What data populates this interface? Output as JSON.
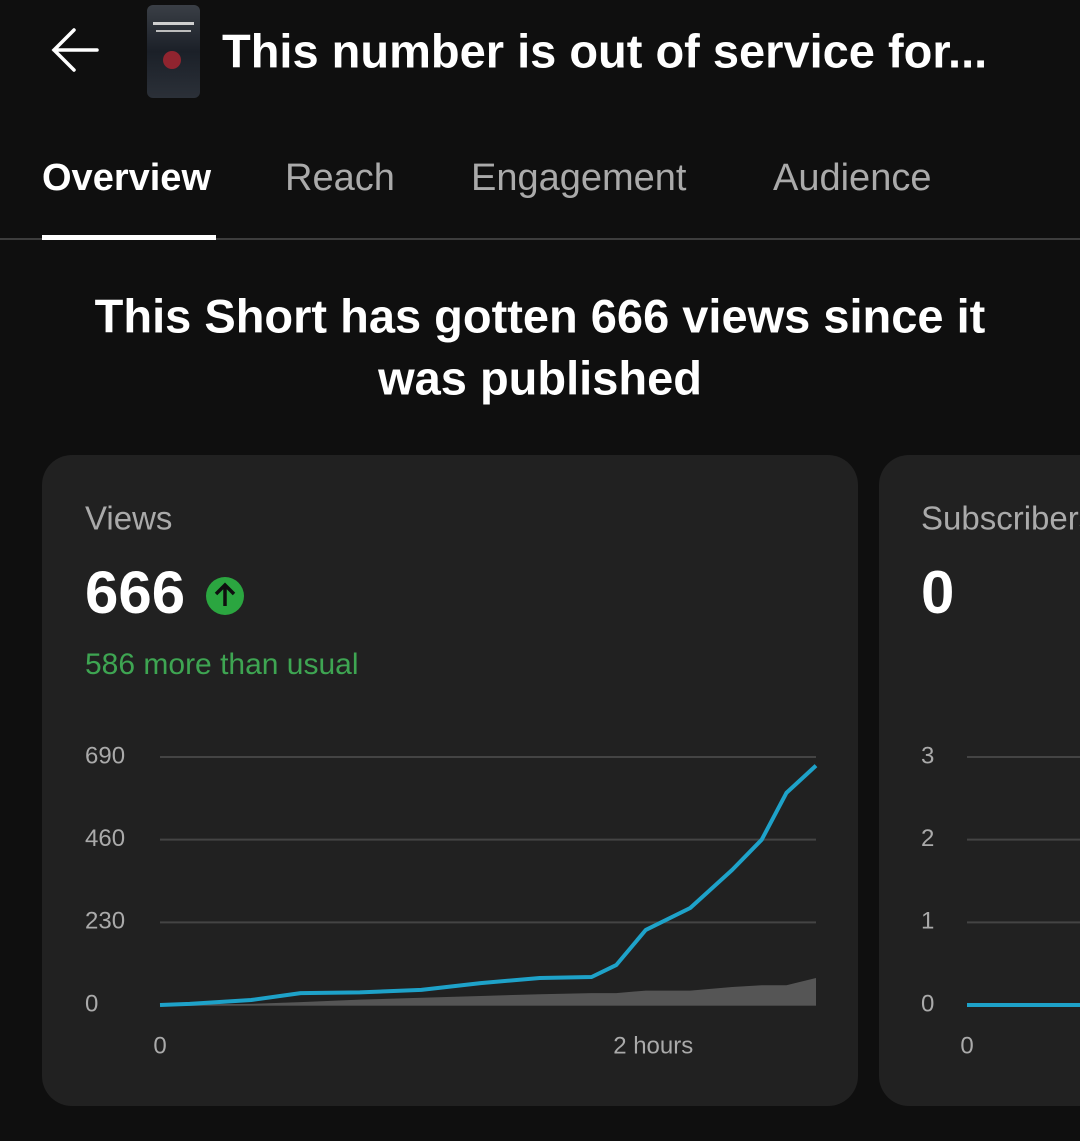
{
  "header": {
    "title": "This number is out of service for..."
  },
  "tabs": [
    "Overview",
    "Reach",
    "Engagement",
    "Audience"
  ],
  "headline": [
    "This Short has gotten 666 views since it",
    "was published"
  ],
  "cards": [
    {
      "label": "Views",
      "value": "666",
      "delta": "586 more than usual"
    },
    {
      "label": "Subscribers",
      "value": "0"
    }
  ],
  "chart_data": [
    {
      "type": "line",
      "x": [
        0,
        0.12,
        0.37,
        0.57,
        0.81,
        1.06,
        1.3,
        1.54,
        1.75,
        1.85,
        1.97,
        2.15,
        2.32,
        2.44,
        2.54,
        2.66
      ],
      "series": [
        {
          "color": "#555555",
          "kind": "area",
          "values": [
            0,
            1,
            3,
            8,
            15,
            20,
            25,
            30,
            33,
            33,
            40,
            40,
            50,
            55,
            55,
            75
          ]
        },
        {
          "color": "#1ea2c9",
          "values": [
            0,
            3,
            14,
            33,
            35,
            42,
            61,
            75,
            78,
            111,
            209,
            270,
            376,
            460,
            590,
            666
          ]
        }
      ],
      "xlim": [
        0,
        2.66
      ],
      "xticks": [
        0,
        {
          "value": 2,
          "label": "2 hours"
        }
      ],
      "ylim": [
        0,
        690
      ],
      "yticks": [
        0,
        230,
        460,
        690
      ],
      "grid": true
    },
    {
      "type": "line",
      "x": [
        0,
        2.66
      ],
      "series": [
        {
          "color": "#1ea2c9",
          "values": [
            0,
            0
          ]
        }
      ],
      "xlim": [
        0,
        2.66
      ],
      "xticks": [
        0
      ],
      "ylim": [
        0,
        3
      ],
      "yticks": [
        0,
        1,
        2,
        3
      ],
      "grid": true
    }
  ]
}
